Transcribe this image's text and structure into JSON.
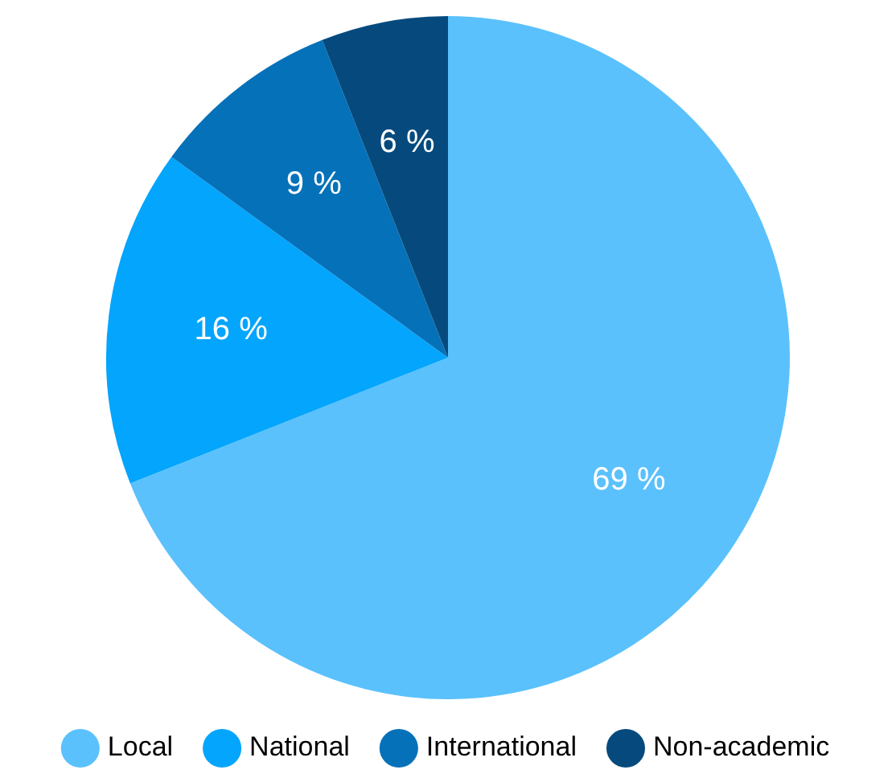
{
  "chart_data": {
    "type": "pie",
    "categories": [
      "Local",
      "National",
      "International",
      "Non-academic"
    ],
    "values": [
      69,
      16,
      9,
      6
    ],
    "colors": [
      "#5ac1fc",
      "#04a5fc",
      "#0571b9",
      "#064a7d"
    ],
    "value_labels": [
      "69 %",
      "16 %",
      "9 %",
      "6 %"
    ],
    "legend": "bottom"
  }
}
